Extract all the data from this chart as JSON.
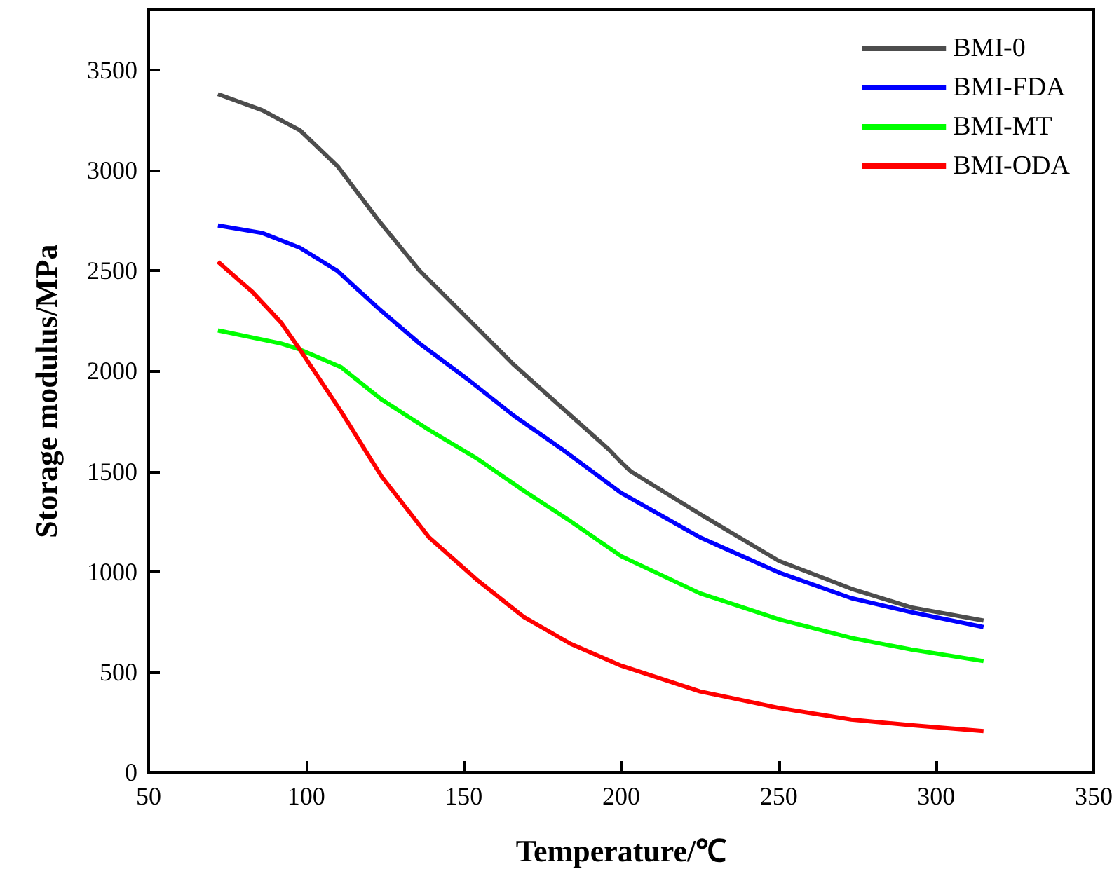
{
  "chart_data": {
    "type": "line",
    "xlabel": "Temperature/℃",
    "ylabel": "Storage modulus/MPa",
    "xlim": [
      50,
      350
    ],
    "xticks": [
      50,
      100,
      150,
      200,
      250,
      300,
      350
    ],
    "ylim": [
      0,
      3800
    ],
    "yticks": [
      0,
      500,
      1000,
      1500,
      2000,
      2500,
      3000,
      3500
    ],
    "grid": false,
    "legend": "top right",
    "marker": "none",
    "line_style": "solid",
    "series": [
      {
        "name": "BMI-0",
        "color": "#4d4d4d",
        "x": [
          72,
          86,
          98,
          110,
          123,
          136,
          151,
          166,
          181,
          196,
          200,
          203,
          225,
          250,
          273,
          292,
          315
        ],
        "values": [
          3380,
          3300,
          3200,
          3020,
          2750,
          2500,
          2265,
          2030,
          1820,
          1610,
          1545,
          1500,
          1287,
          1054,
          915,
          822,
          756
        ]
      },
      {
        "name": "BMI-FDA",
        "color": "#0000ff",
        "x": [
          72,
          86,
          98,
          110,
          123,
          136,
          151,
          166,
          181,
          200,
          225,
          250,
          273,
          292,
          315
        ],
        "values": [
          2725,
          2688,
          2614,
          2498,
          2311,
          2137,
          1962,
          1776,
          1613,
          1392,
          1171,
          996,
          868,
          798,
          724
        ]
      },
      {
        "name": "BMI-MT",
        "color": "#00ff00",
        "x": [
          72,
          92,
          98,
          111,
          124,
          139,
          154,
          169,
          184,
          200,
          225,
          250,
          273,
          292,
          315
        ],
        "values": [
          2202,
          2137,
          2107,
          2020,
          1857,
          1706,
          1566,
          1404,
          1250,
          1077,
          892,
          763,
          670,
          612,
          554
        ]
      },
      {
        "name": "BMI-ODA",
        "color": "#ff0000",
        "x": [
          72,
          83,
          92,
          98,
          111,
          124,
          139,
          154,
          169,
          184,
          200,
          225,
          250,
          273,
          292,
          315
        ],
        "values": [
          2544,
          2393,
          2242,
          2107,
          1800,
          1473,
          1171,
          962,
          775,
          640,
          531,
          403,
          321,
          263,
          235,
          205
        ]
      }
    ]
  }
}
